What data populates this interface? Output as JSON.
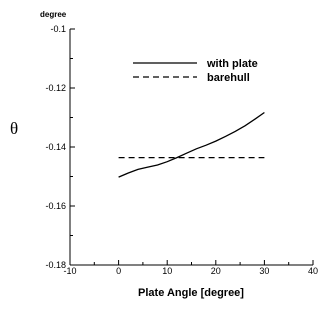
{
  "chart_data": {
    "type": "line",
    "unit_label": "degree",
    "ylabel": "θ",
    "xlabel": "Plate Angle [degree]",
    "xlim": [
      -10,
      40
    ],
    "ylim": [
      -0.18,
      -0.1
    ],
    "xticks": [
      "-10",
      "0",
      "10",
      "20",
      "30",
      "40"
    ],
    "yticks": [
      "-0.1",
      "-0.12",
      "-0.14",
      "-0.16",
      "-0.18"
    ],
    "grid": false,
    "legend_position": "top-right",
    "series": [
      {
        "name": "with plate",
        "style": "solid",
        "color": "#000000",
        "x": [
          0,
          2,
          4,
          6,
          8,
          10,
          12,
          14,
          16,
          18,
          20,
          22,
          24,
          26,
          28,
          30
        ],
        "y": [
          -0.1502,
          -0.1488,
          -0.1476,
          -0.1468,
          -0.1461,
          -0.145,
          -0.1436,
          -0.1421,
          -0.1406,
          -0.1394,
          -0.138,
          -0.1364,
          -0.1347,
          -0.1328,
          -0.1306,
          -0.1283
        ]
      },
      {
        "name": "barehull",
        "style": "dashed",
        "color": "#000000",
        "x": [
          0,
          30
        ],
        "y": [
          -0.1436,
          -0.1436
        ]
      }
    ]
  }
}
